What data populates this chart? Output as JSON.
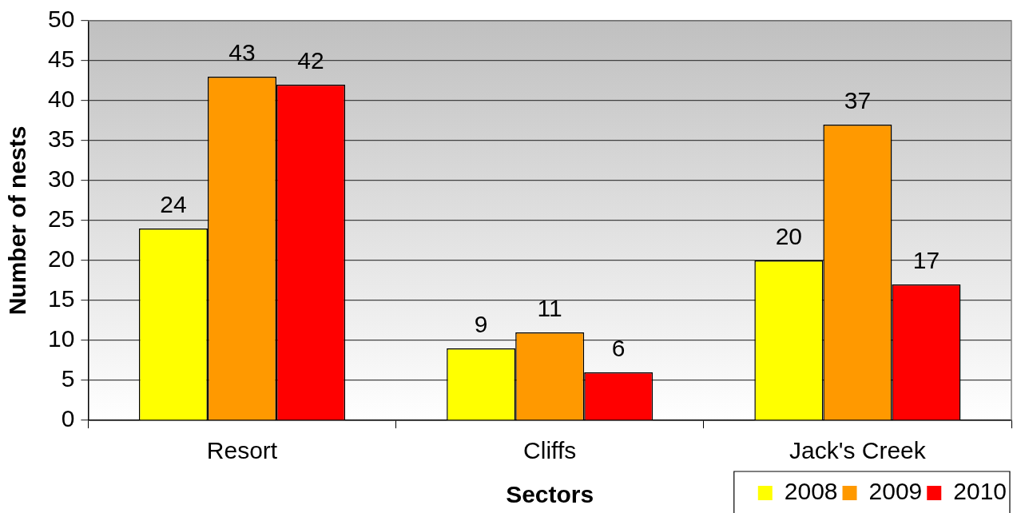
{
  "chart_data": {
    "type": "bar",
    "xlabel": "Sectors",
    "ylabel": "Number of nests",
    "categories": [
      "Resort",
      "Cliffs",
      "Jack's Creek"
    ],
    "series": [
      {
        "name": "2008",
        "color": "#ffff00",
        "values": [
          24,
          9,
          20
        ]
      },
      {
        "name": "2009",
        "color": "#ff9900",
        "values": [
          43,
          11,
          37
        ]
      },
      {
        "name": "2010",
        "color": "#ff0000",
        "values": [
          42,
          6,
          17
        ]
      }
    ],
    "ylim": [
      0,
      50
    ],
    "yticks": [
      0,
      5,
      10,
      15,
      20,
      25,
      30,
      35,
      40,
      45,
      50
    ],
    "grid": "y",
    "legend": "bottom right",
    "data_labels": true
  }
}
